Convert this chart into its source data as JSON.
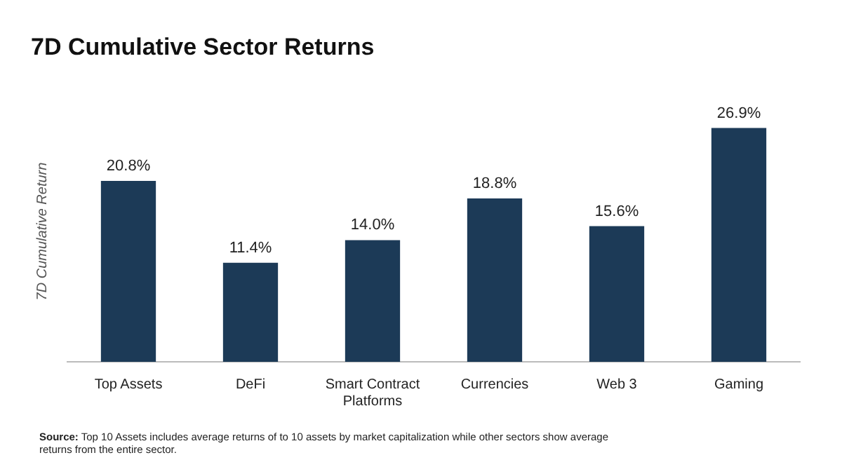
{
  "chart_data": {
    "type": "bar",
    "title": "7D Cumulative Sector Returns",
    "ylabel": "7D Cumulative Return",
    "categories": [
      "Top Assets",
      "DeFi",
      "Smart Contract Platforms",
      "Currencies",
      "Web 3",
      "Gaming"
    ],
    "values": [
      20.8,
      11.4,
      14.0,
      18.8,
      15.6,
      26.9
    ],
    "value_labels": [
      "20.8%",
      "11.4%",
      "14.0%",
      "18.8%",
      "15.6%",
      "26.9%"
    ],
    "color": "#1c3a57",
    "annotations": [
      "Source: Top 10 Assets includes average returns of to 10 assets by market capitalization while other sectors show average returns from the entire sector."
    ]
  }
}
